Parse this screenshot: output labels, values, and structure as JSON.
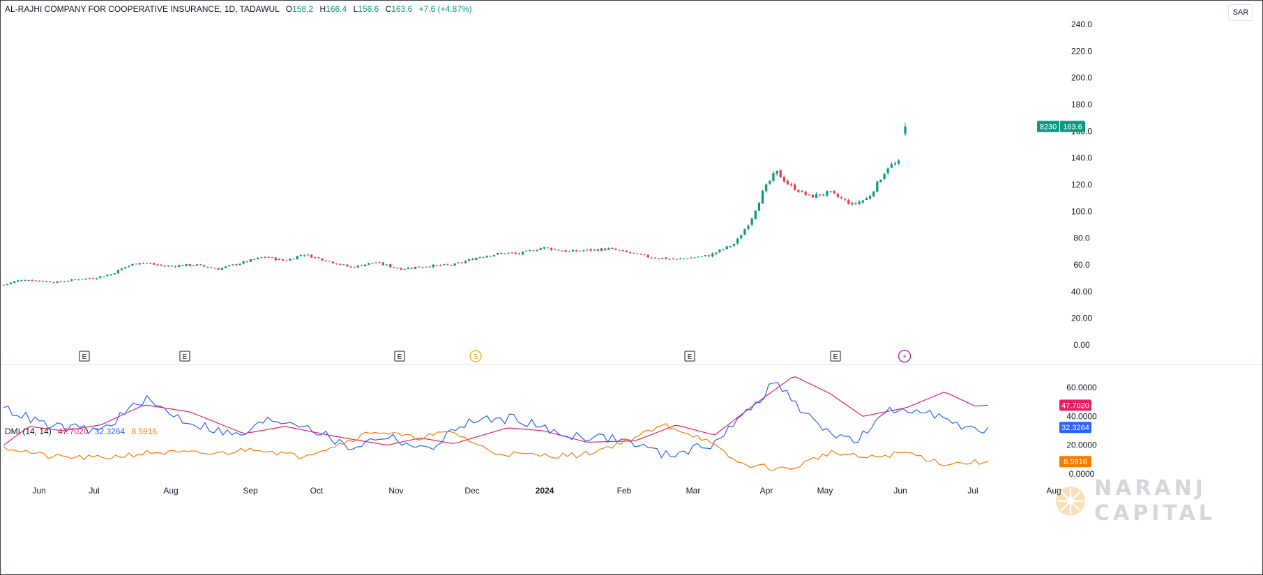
{
  "header": {
    "symbol": "AL-RAJHI COMPANY FOR COOPERATIVE INSURANCE, 1D, TADAWUL",
    "open_label": "O",
    "open": "158.2",
    "high_label": "H",
    "high": "166.4",
    "low_label": "L",
    "low": "156.6",
    "close_label": "C",
    "close": "163.6",
    "change": "+7.6 (+4.87%)"
  },
  "currency": "SAR",
  "price_tag": {
    "ticker": "8230",
    "price": "163.6"
  },
  "dmi": {
    "label": "DMI (14, 14)",
    "adx": "47.7020",
    "plus_di": "32.3264",
    "minus_di": "8.5916"
  },
  "watermark": {
    "line1": "NARANJ",
    "line2": "CAPITAL"
  },
  "events": [
    {
      "label": "E",
      "month": "Jul",
      "day": 0
    },
    {
      "label": "E",
      "month": "Aug",
      "day": 8
    },
    {
      "label": "E",
      "month": "Nov",
      "day": 3
    },
    {
      "label": "S",
      "month": "Nov",
      "day": 22
    },
    {
      "label": "E",
      "month": "Mar",
      "day": 0
    },
    {
      "label": "E",
      "month": "May",
      "day": 7
    },
    {
      "label": "⚡",
      "month": "Jun",
      "day": 2
    }
  ],
  "colors": {
    "up": "#089981",
    "down": "#f23645",
    "adx": "#e91e63",
    "plus_di": "#2962ff",
    "minus_di": "#f57c00",
    "event_e": "#131722",
    "event_s": "#f7a600",
    "event_flash": "#9c27b0"
  },
  "chart_data": [
    {
      "type": "candlestick",
      "title": "AL-RAJHI COMPANY FOR COOPERATIVE INSURANCE, 1D, TADAWUL",
      "ylim": [
        0,
        240
      ],
      "yticks": [
        "240.0",
        "220.0",
        "200.0",
        "180.0",
        "160.0",
        "140.0",
        "120.0",
        "100.0",
        "80.0",
        "60.0",
        "40.00",
        "20.00",
        "0.00"
      ],
      "xticks": [
        "Jun",
        "Jul",
        "Aug",
        "Sep",
        "Oct",
        "Nov",
        "Dec",
        "2024",
        "Feb",
        "Mar",
        "Apr",
        "May",
        "Jun",
        "Jul",
        "Aug"
      ],
      "close_path": [
        {
          "x": "2023-05-18",
          "y": 45
        },
        {
          "x": "2023-05-25",
          "y": 49
        },
        {
          "x": "2023-06-01",
          "y": 48
        },
        {
          "x": "2023-06-08",
          "y": 47
        },
        {
          "x": "2023-06-15",
          "y": 49
        },
        {
          "x": "2023-06-22",
          "y": 50
        },
        {
          "x": "2023-06-29",
          "y": 53
        },
        {
          "x": "2023-07-04",
          "y": 58
        },
        {
          "x": "2023-07-10",
          "y": 62
        },
        {
          "x": "2023-07-20",
          "y": 59
        },
        {
          "x": "2023-08-01",
          "y": 60
        },
        {
          "x": "2023-08-10",
          "y": 57
        },
        {
          "x": "2023-08-20",
          "y": 62
        },
        {
          "x": "2023-08-28",
          "y": 66
        },
        {
          "x": "2023-09-05",
          "y": 63
        },
        {
          "x": "2023-09-12",
          "y": 68
        },
        {
          "x": "2023-09-20",
          "y": 64
        },
        {
          "x": "2023-10-01",
          "y": 58
        },
        {
          "x": "2023-10-10",
          "y": 62
        },
        {
          "x": "2023-10-20",
          "y": 57
        },
        {
          "x": "2023-10-30",
          "y": 59
        },
        {
          "x": "2023-11-10",
          "y": 60
        },
        {
          "x": "2023-11-20",
          "y": 66
        },
        {
          "x": "2023-11-30",
          "y": 69
        },
        {
          "x": "2023-12-05",
          "y": 68
        },
        {
          "x": "2023-12-15",
          "y": 73
        },
        {
          "x": "2023-12-25",
          "y": 70
        },
        {
          "x": "2024-01-10",
          "y": 72
        },
        {
          "x": "2024-01-25",
          "y": 66
        },
        {
          "x": "2024-02-05",
          "y": 64
        },
        {
          "x": "2024-02-18",
          "y": 67
        },
        {
          "x": "2024-02-28",
          "y": 76
        },
        {
          "x": "2024-03-05",
          "y": 93
        },
        {
          "x": "2024-03-10",
          "y": 115
        },
        {
          "x": "2024-03-15",
          "y": 130
        },
        {
          "x": "2024-03-20",
          "y": 120
        },
        {
          "x": "2024-03-28",
          "y": 111
        },
        {
          "x": "2024-04-05",
          "y": 114
        },
        {
          "x": "2024-04-14",
          "y": 105
        },
        {
          "x": "2024-04-20",
          "y": 110
        },
        {
          "x": "2024-04-28",
          "y": 134
        },
        {
          "x": "2024-05-05",
          "y": 138
        },
        {
          "x": "2024-05-12",
          "y": 155
        },
        {
          "x": "2024-05-18",
          "y": 154
        },
        {
          "x": "2024-05-24",
          "y": 140
        },
        {
          "x": "2024-05-28",
          "y": 150
        },
        {
          "x": "2024-06-02",
          "y": 146
        },
        {
          "x": "2024-06-05",
          "y": 156
        },
        {
          "x": "2024-06-06",
          "y": 163.6
        }
      ],
      "last_bar": {
        "open": 158.2,
        "high": 166.4,
        "low": 156.6,
        "close": 163.6
      }
    },
    {
      "type": "line",
      "title": "DMI (14, 14)",
      "ylim": [
        0,
        70
      ],
      "yticks": [
        "60.0000",
        "40.0000",
        "20.0000",
        "0.0000"
      ],
      "series": [
        {
          "name": "ADX",
          "last": 47.702,
          "points": [
            {
              "x": "2023-05-18",
              "y": 20
            },
            {
              "x": "2023-05-28",
              "y": 33
            },
            {
              "x": "2023-06-10",
              "y": 30
            },
            {
              "x": "2023-06-25",
              "y": 34
            },
            {
              "x": "2023-07-12",
              "y": 48
            },
            {
              "x": "2023-07-30",
              "y": 43
            },
            {
              "x": "2023-08-20",
              "y": 28
            },
            {
              "x": "2023-09-05",
              "y": 33
            },
            {
              "x": "2023-09-25",
              "y": 26
            },
            {
              "x": "2023-10-15",
              "y": 20
            },
            {
              "x": "2023-10-28",
              "y": 25
            },
            {
              "x": "2023-11-10",
              "y": 21
            },
            {
              "x": "2023-12-01",
              "y": 32
            },
            {
              "x": "2023-12-15",
              "y": 30
            },
            {
              "x": "2024-01-01",
              "y": 22
            },
            {
              "x": "2024-01-20",
              "y": 23
            },
            {
              "x": "2024-02-05",
              "y": 34
            },
            {
              "x": "2024-02-20",
              "y": 27
            },
            {
              "x": "2024-03-08",
              "y": 50
            },
            {
              "x": "2024-03-22",
              "y": 68
            },
            {
              "x": "2024-04-05",
              "y": 56
            },
            {
              "x": "2024-04-18",
              "y": 40
            },
            {
              "x": "2024-05-05",
              "y": 46
            },
            {
              "x": "2024-05-20",
              "y": 57
            },
            {
              "x": "2024-06-01",
              "y": 47
            },
            {
              "x": "2024-06-06",
              "y": 47.702
            }
          ]
        },
        {
          "name": "+DI",
          "last": 32.3264,
          "points": [
            {
              "x": "2023-05-18",
              "y": 46
            },
            {
              "x": "2023-06-05",
              "y": 33
            },
            {
              "x": "2023-06-25",
              "y": 30
            },
            {
              "x": "2023-07-12",
              "y": 52
            },
            {
              "x": "2023-07-28",
              "y": 37
            },
            {
              "x": "2023-08-18",
              "y": 26
            },
            {
              "x": "2023-08-30",
              "y": 38
            },
            {
              "x": "2023-09-12",
              "y": 35
            },
            {
              "x": "2023-09-30",
              "y": 18
            },
            {
              "x": "2023-10-15",
              "y": 27
            },
            {
              "x": "2023-10-30",
              "y": 16
            },
            {
              "x": "2023-11-15",
              "y": 36
            },
            {
              "x": "2023-12-05",
              "y": 39
            },
            {
              "x": "2023-12-20",
              "y": 28
            },
            {
              "x": "2024-01-15",
              "y": 24
            },
            {
              "x": "2024-02-01",
              "y": 13
            },
            {
              "x": "2024-02-18",
              "y": 20
            },
            {
              "x": "2024-03-01",
              "y": 38
            },
            {
              "x": "2024-03-15",
              "y": 64
            },
            {
              "x": "2024-03-30",
              "y": 35
            },
            {
              "x": "2024-04-15",
              "y": 22
            },
            {
              "x": "2024-04-28",
              "y": 43
            },
            {
              "x": "2024-05-12",
              "y": 46
            },
            {
              "x": "2024-05-28",
              "y": 30
            },
            {
              "x": "2024-06-06",
              "y": 32.3264
            }
          ]
        },
        {
          "name": "-DI",
          "last": 8.5916,
          "points": [
            {
              "x": "2023-05-18",
              "y": 19
            },
            {
              "x": "2023-06-05",
              "y": 12
            },
            {
              "x": "2023-06-25",
              "y": 11
            },
            {
              "x": "2023-07-15",
              "y": 15
            },
            {
              "x": "2023-08-10",
              "y": 14
            },
            {
              "x": "2023-08-25",
              "y": 18
            },
            {
              "x": "2023-09-10",
              "y": 12
            },
            {
              "x": "2023-09-25",
              "y": 20
            },
            {
              "x": "2023-10-10",
              "y": 30
            },
            {
              "x": "2023-10-25",
              "y": 25
            },
            {
              "x": "2023-11-10",
              "y": 29
            },
            {
              "x": "2023-11-25",
              "y": 15
            },
            {
              "x": "2023-12-10",
              "y": 13
            },
            {
              "x": "2023-12-30",
              "y": 13
            },
            {
              "x": "2024-01-15",
              "y": 22
            },
            {
              "x": "2024-02-01",
              "y": 34
            },
            {
              "x": "2024-02-15",
              "y": 25
            },
            {
              "x": "2024-03-01",
              "y": 7
            },
            {
              "x": "2024-03-20",
              "y": 3
            },
            {
              "x": "2024-04-05",
              "y": 15
            },
            {
              "x": "2024-04-20",
              "y": 11
            },
            {
              "x": "2024-05-05",
              "y": 15
            },
            {
              "x": "2024-05-20",
              "y": 7
            },
            {
              "x": "2024-06-06",
              "y": 8.5916
            }
          ]
        }
      ]
    }
  ]
}
